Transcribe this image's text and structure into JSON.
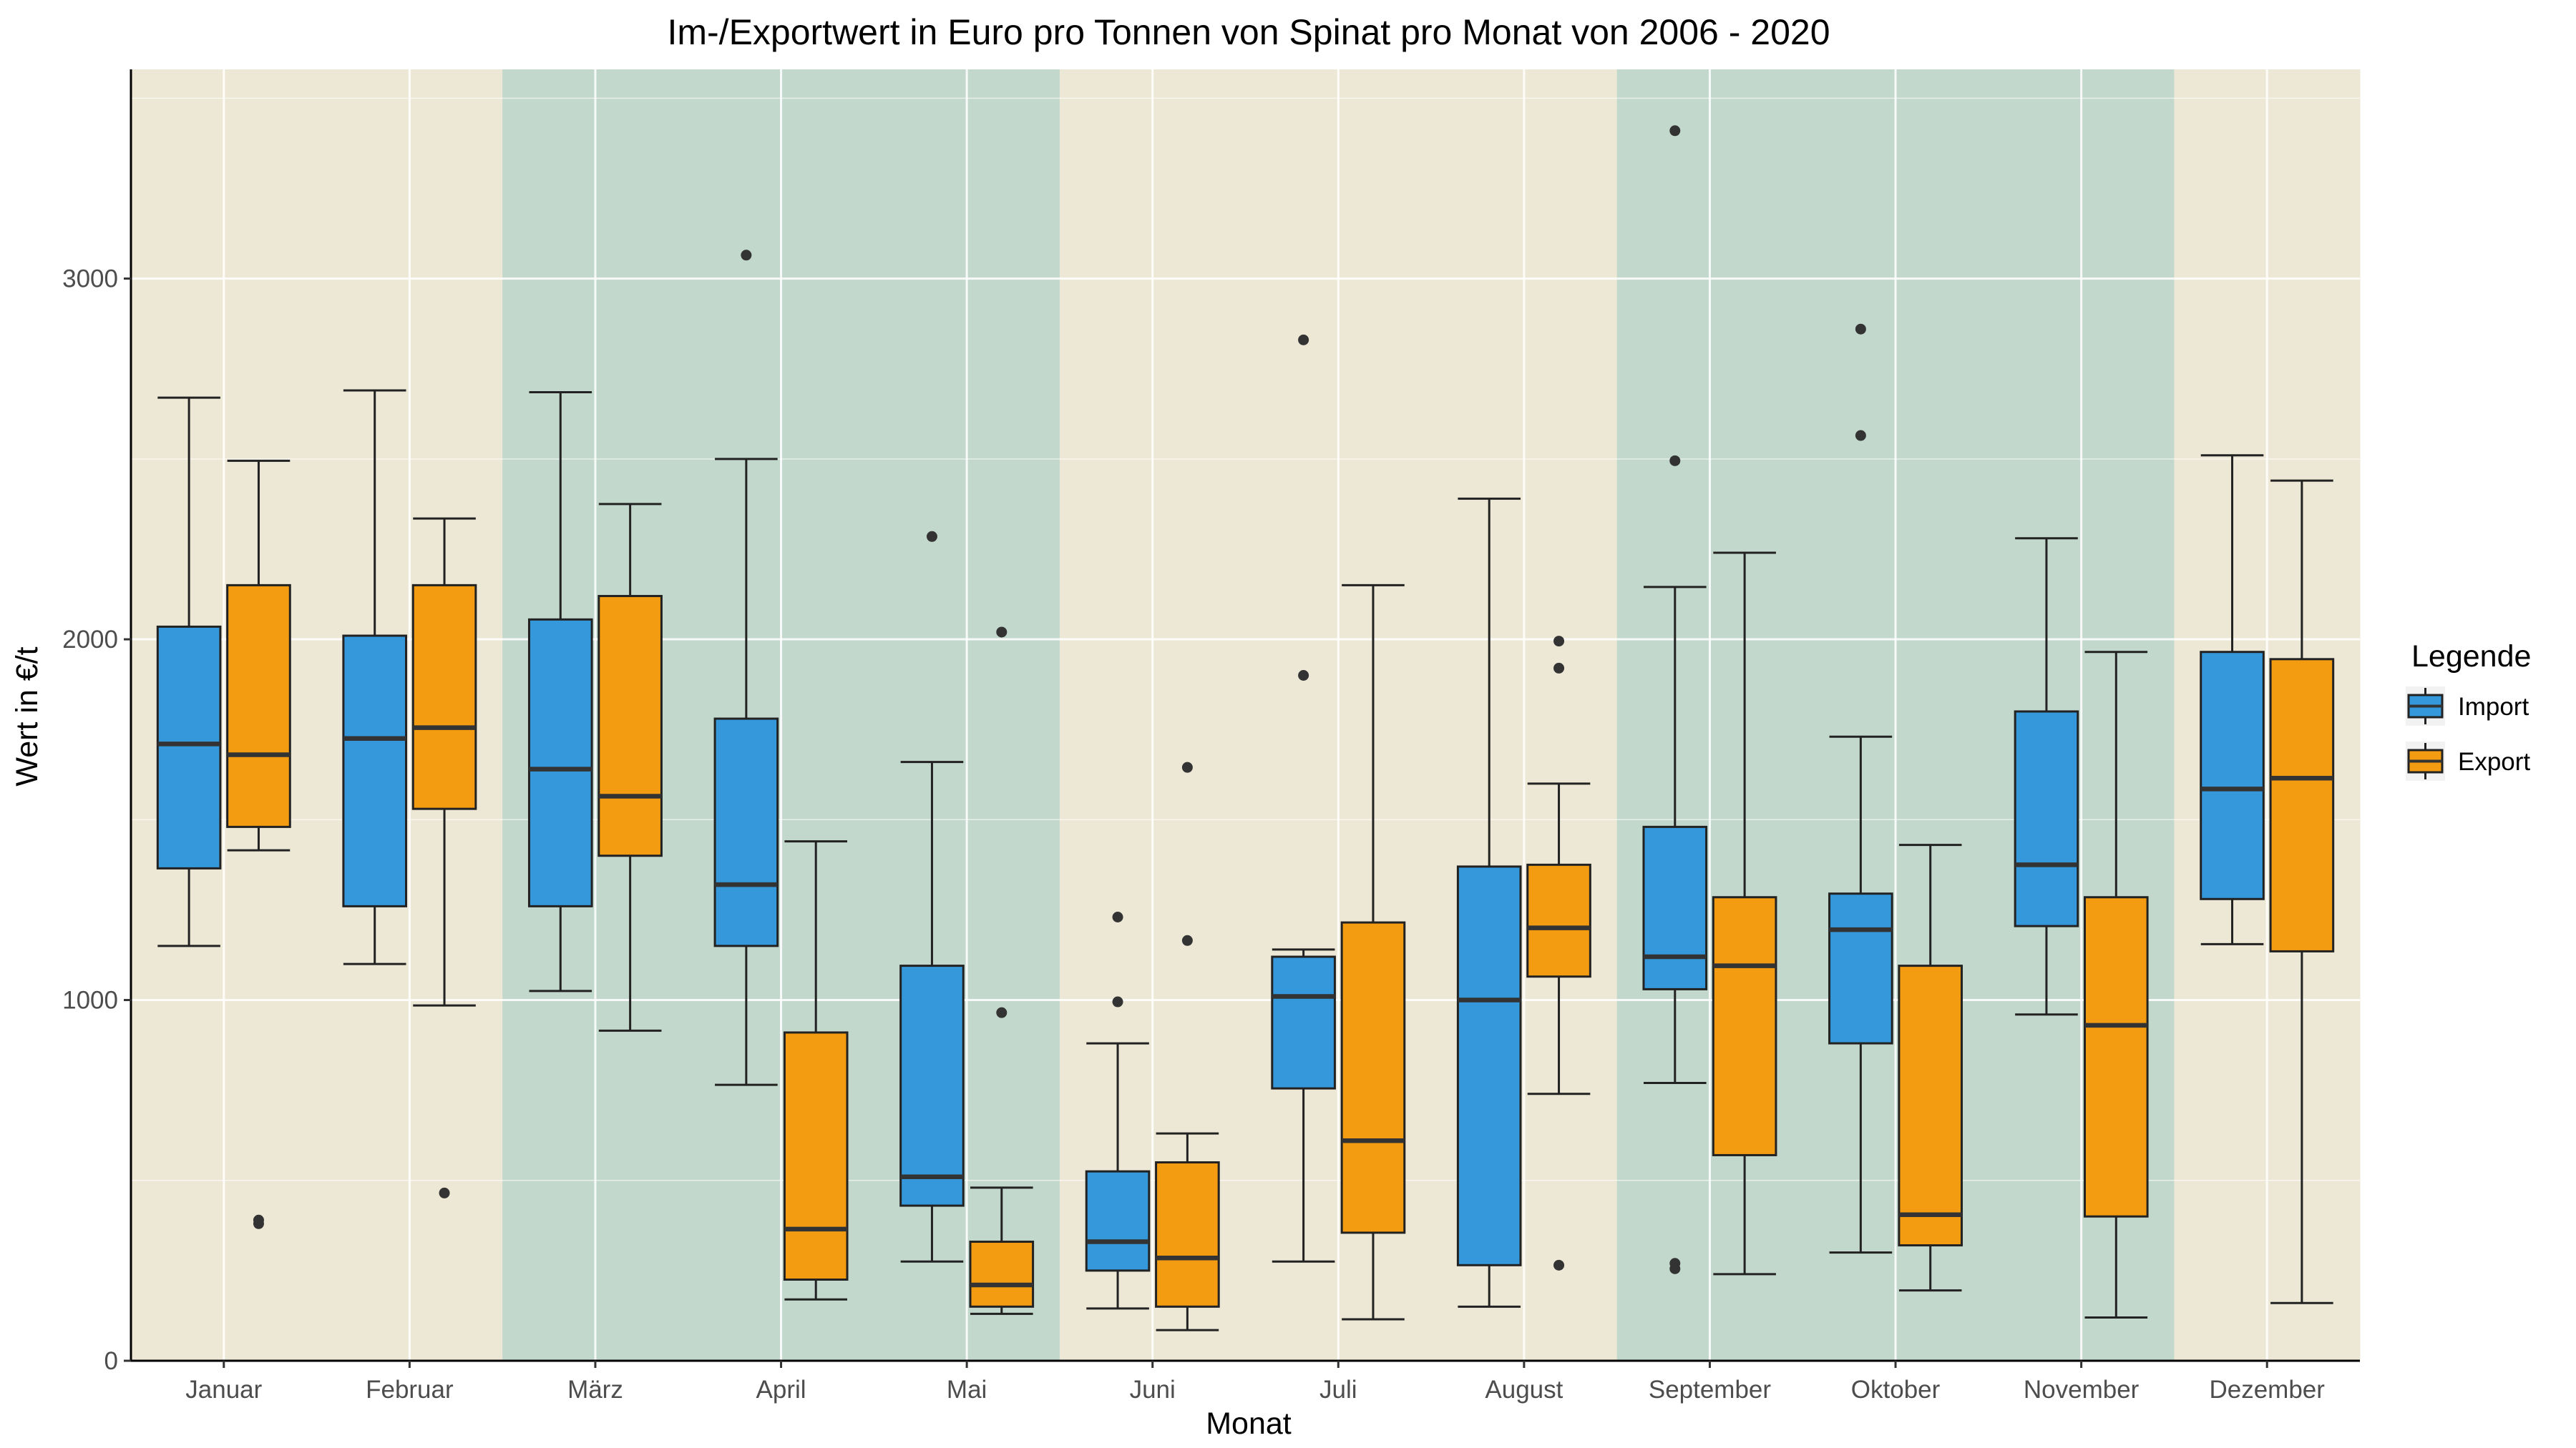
{
  "chart_data": {
    "type": "boxplot",
    "title": "Im-/Exportwert in Euro pro Tonnen von Spinat pro Monat von 2006 - 2020",
    "xlabel": "Monat",
    "ylabel": "Wert in €/t",
    "ylim": [
      0,
      3580
    ],
    "yticks": [
      0,
      1000,
      2000,
      3000
    ],
    "grid": true,
    "legend": {
      "title": "Legende",
      "position": "right"
    },
    "categories": [
      "Januar",
      "Februar",
      "März",
      "April",
      "Mai",
      "Juni",
      "Juli",
      "August",
      "September",
      "Oktober",
      "November",
      "Dezember"
    ],
    "season_bands": [
      "#ede8d5",
      "#ede8d5",
      "#c3d8cd",
      "#c3d8cd",
      "#c3d8cd",
      "#ede8d5",
      "#ede8d5",
      "#ede8d5",
      "#c3d8cd",
      "#c3d8cd",
      "#c3d8cd",
      "#ede8d5"
    ],
    "series": [
      {
        "name": "Import",
        "color": "#3498db",
        "boxes": [
          {
            "low": 1150,
            "q1": 1365,
            "median": 1710,
            "q3": 2035,
            "high": 2670,
            "outliers": []
          },
          {
            "low": 1100,
            "q1": 1260,
            "median": 1725,
            "q3": 2010,
            "high": 2690,
            "outliers": []
          },
          {
            "low": 1025,
            "q1": 1260,
            "median": 1640,
            "q3": 2055,
            "high": 2685,
            "outliers": []
          },
          {
            "low": 765,
            "q1": 1150,
            "median": 1320,
            "q3": 1780,
            "high": 2500,
            "outliers": [
              3065
            ]
          },
          {
            "low": 275,
            "q1": 430,
            "median": 510,
            "q3": 1095,
            "high": 1660,
            "outliers": [
              2285
            ]
          },
          {
            "low": 145,
            "q1": 250,
            "median": 330,
            "q3": 525,
            "high": 880,
            "outliers": [
              995,
              1230
            ]
          },
          {
            "low": 275,
            "q1": 755,
            "median": 1010,
            "q3": 1120,
            "high": 1140,
            "outliers": [
              1900,
              2830
            ]
          },
          {
            "low": 150,
            "q1": 265,
            "median": 1000,
            "q3": 1370,
            "high": 2390,
            "outliers": []
          },
          {
            "low": 770,
            "q1": 1030,
            "median": 1120,
            "q3": 1480,
            "high": 2145,
            "outliers": [
              255,
              270,
              2495,
              3410
            ]
          },
          {
            "low": 300,
            "q1": 880,
            "median": 1195,
            "q3": 1295,
            "high": 1730,
            "outliers": [
              2565,
              2860
            ]
          },
          {
            "low": 960,
            "q1": 1205,
            "median": 1375,
            "q3": 1800,
            "high": 2280,
            "outliers": []
          },
          {
            "low": 1155,
            "q1": 1280,
            "median": 1585,
            "q3": 1965,
            "high": 2510,
            "outliers": []
          }
        ]
      },
      {
        "name": "Export",
        "color": "#f39c12",
        "boxes": [
          {
            "low": 1415,
            "q1": 1480,
            "median": 1680,
            "q3": 2150,
            "high": 2495,
            "outliers": [
              380,
              390
            ]
          },
          {
            "low": 985,
            "q1": 1530,
            "median": 1755,
            "q3": 2150,
            "high": 2335,
            "outliers": [
              465
            ]
          },
          {
            "low": 915,
            "q1": 1400,
            "median": 1565,
            "q3": 2120,
            "high": 2375,
            "outliers": []
          },
          {
            "low": 170,
            "q1": 225,
            "median": 365,
            "q3": 910,
            "high": 1440,
            "outliers": []
          },
          {
            "low": 130,
            "q1": 150,
            "median": 210,
            "q3": 330,
            "high": 480,
            "outliers": [
              965,
              2020
            ]
          },
          {
            "low": 85,
            "q1": 150,
            "median": 285,
            "q3": 550,
            "high": 630,
            "outliers": [
              1165,
              1645
            ]
          },
          {
            "low": 115,
            "q1": 355,
            "median": 610,
            "q3": 1215,
            "high": 2150,
            "outliers": []
          },
          {
            "low": 740,
            "q1": 1065,
            "median": 1200,
            "q3": 1375,
            "high": 1600,
            "outliers": [
              265,
              1920,
              1995
            ]
          },
          {
            "low": 240,
            "q1": 570,
            "median": 1095,
            "q3": 1285,
            "high": 2240,
            "outliers": []
          },
          {
            "low": 195,
            "q1": 320,
            "median": 405,
            "q3": 1095,
            "high": 1430,
            "outliers": []
          },
          {
            "low": 120,
            "q1": 400,
            "median": 930,
            "q3": 1285,
            "high": 1965,
            "outliers": []
          },
          {
            "low": 160,
            "q1": 1135,
            "median": 1615,
            "q3": 1945,
            "high": 2440,
            "outliers": []
          }
        ]
      }
    ]
  }
}
